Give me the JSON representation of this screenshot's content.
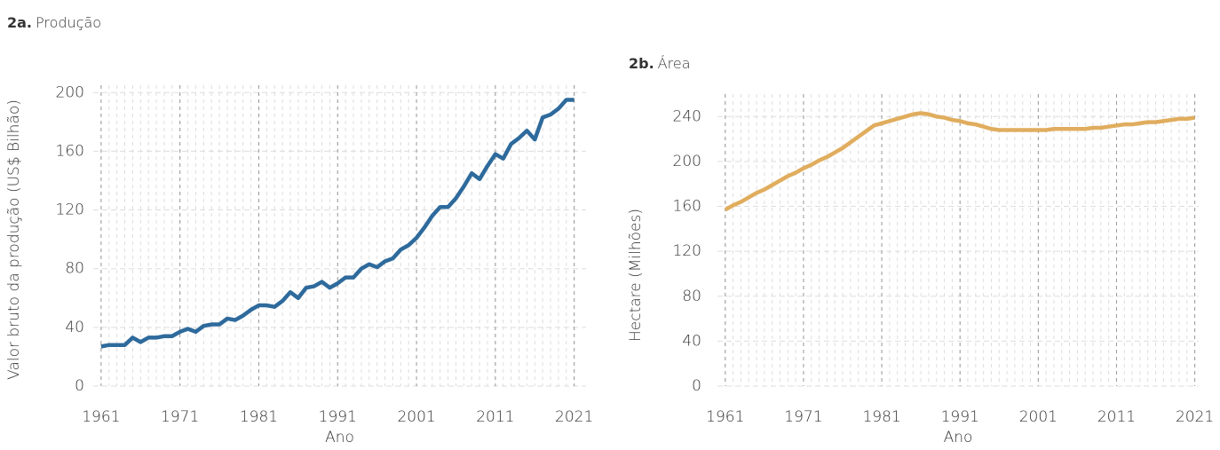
{
  "chart_data": [
    {
      "type": "line",
      "panel": "2a.",
      "title": "Produção",
      "x_label": "Ano",
      "y_label": "Valor bruto da produção (US$ Bilhão)",
      "x": [
        1961,
        1962,
        1963,
        1964,
        1965,
        1966,
        1967,
        1968,
        1969,
        1970,
        1971,
        1972,
        1973,
        1974,
        1975,
        1976,
        1977,
        1978,
        1979,
        1980,
        1981,
        1982,
        1983,
        1984,
        1985,
        1986,
        1987,
        1988,
        1989,
        1990,
        1991,
        1992,
        1993,
        1994,
        1995,
        1996,
        1997,
        1998,
        1999,
        2000,
        2001,
        2002,
        2003,
        2004,
        2005,
        2006,
        2007,
        2008,
        2009,
        2010,
        2011,
        2012,
        2013,
        2014,
        2015,
        2016,
        2017,
        2018,
        2019,
        2020,
        2021
      ],
      "series": [
        {
          "name": "Produção",
          "color": "#2e6a9c",
          "values": [
            27,
            28,
            28,
            28,
            33,
            30,
            33,
            33,
            34,
            34,
            37,
            39,
            37,
            41,
            42,
            42,
            46,
            45,
            48,
            52,
            55,
            55,
            54,
            58,
            64,
            60,
            67,
            68,
            71,
            67,
            70,
            74,
            74,
            80,
            83,
            81,
            85,
            87,
            93,
            96,
            101,
            108,
            116,
            122,
            122,
            128,
            136,
            145,
            141,
            150,
            158,
            155,
            165,
            169,
            174,
            168,
            183,
            185,
            189,
            195,
            195
          ]
        }
      ],
      "xlim": [
        1960,
        2022.5
      ],
      "xticks": [
        1961,
        1971,
        1981,
        1991,
        2001,
        2011,
        2021
      ],
      "ylim": [
        0,
        205
      ],
      "yticks": [
        0,
        40,
        80,
        120,
        160,
        200
      ],
      "grid": true
    },
    {
      "type": "line",
      "panel": "2b.",
      "title": "Área",
      "x_label": "Ano",
      "y_label": "Hectare (Milhões)",
      "x": [
        1961,
        1962,
        1963,
        1964,
        1965,
        1966,
        1967,
        1968,
        1969,
        1970,
        1971,
        1972,
        1973,
        1974,
        1975,
        1976,
        1977,
        1978,
        1979,
        1980,
        1981,
        1982,
        1983,
        1984,
        1985,
        1986,
        1987,
        1988,
        1989,
        1990,
        1991,
        1992,
        1993,
        1994,
        1995,
        1996,
        1997,
        1998,
        1999,
        2000,
        2001,
        2002,
        2003,
        2004,
        2005,
        2006,
        2007,
        2008,
        2009,
        2010,
        2011,
        2012,
        2013,
        2014,
        2015,
        2016,
        2017,
        2018,
        2019,
        2020,
        2021
      ],
      "series": [
        {
          "name": "Área",
          "color": "#e0ad5e",
          "values": [
            157,
            161,
            164,
            168,
            172,
            175,
            179,
            183,
            187,
            190,
            194,
            197,
            201,
            204,
            208,
            212,
            217,
            222,
            227,
            232,
            234,
            236,
            238,
            240,
            242,
            243,
            242,
            240,
            239,
            237,
            236,
            234,
            233,
            231,
            229,
            228,
            228,
            228,
            228,
            228,
            228,
            228,
            229,
            229,
            229,
            229,
            229,
            230,
            230,
            231,
            232,
            233,
            233,
            234,
            235,
            235,
            236,
            237,
            238,
            238,
            239
          ]
        }
      ],
      "xlim": [
        1960,
        2021.5
      ],
      "xticks": [
        1961,
        1971,
        1981,
        1991,
        2001,
        2011,
        2021
      ],
      "ylim": [
        0,
        260
      ],
      "yticks": [
        0,
        40,
        80,
        120,
        160,
        200,
        240
      ],
      "grid": true
    }
  ]
}
